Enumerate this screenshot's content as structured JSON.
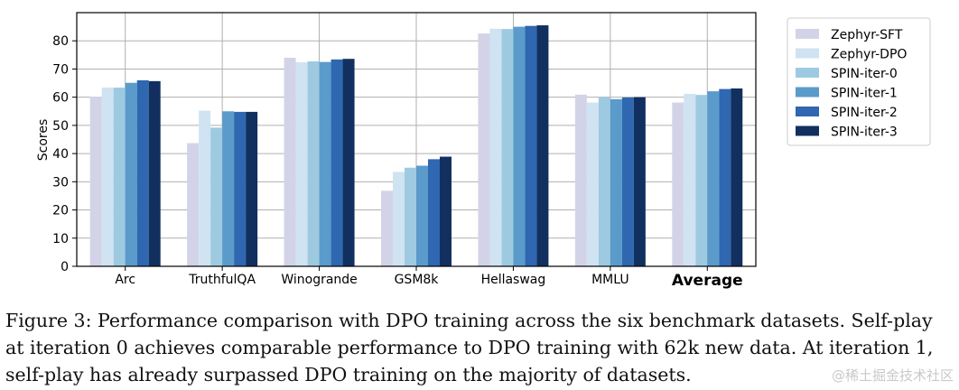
{
  "chart_data": {
    "type": "bar",
    "title": "",
    "xlabel": "",
    "ylabel": "Scores",
    "ylim": [
      0,
      90
    ],
    "yticks": [
      0,
      10,
      20,
      30,
      40,
      50,
      60,
      70,
      80
    ],
    "grid": true,
    "legend_position": "right",
    "categories": [
      "Arc",
      "TruthfulQA",
      "Winogrande",
      "GSM8k",
      "Hellaswag",
      "MMLU",
      "Average"
    ],
    "series": [
      {
        "name": "Zephyr-SFT",
        "color": "#d3d3e8",
        "values": [
          60.2,
          43.7,
          74.0,
          26.8,
          82.6,
          60.9,
          58.1
        ]
      },
      {
        "name": "Zephyr-DPO",
        "color": "#cfe3f2",
        "values": [
          63.4,
          55.2,
          72.4,
          33.5,
          84.3,
          58.1,
          61.2
        ]
      },
      {
        "name": "SPIN-iter-0",
        "color": "#9ecae1",
        "values": [
          63.4,
          49.2,
          72.7,
          35.0,
          84.2,
          60.0,
          60.8
        ]
      },
      {
        "name": "SPIN-iter-1",
        "color": "#5a9bcb",
        "values": [
          65.1,
          55.0,
          72.5,
          35.7,
          85.0,
          59.3,
          62.1
        ]
      },
      {
        "name": "SPIN-iter-2",
        "color": "#2f67b0",
        "values": [
          66.0,
          54.8,
          73.4,
          38.0,
          85.3,
          59.9,
          62.9
        ]
      },
      {
        "name": "SPIN-iter-3",
        "color": "#12305f",
        "values": [
          65.7,
          54.8,
          73.6,
          38.9,
          85.5,
          60.0,
          63.1
        ]
      }
    ]
  },
  "caption": {
    "line1": "Figure 3: Performance comparison with DPO training across the six benchmark datasets. Self-play",
    "line2": "at iteration 0 achieves comparable performance to DPO training with 62k new data. At iteration 1,",
    "line3": "self-play has already surpassed DPO training on the majority of datasets."
  },
  "watermark": "@稀土掘金技术社区"
}
